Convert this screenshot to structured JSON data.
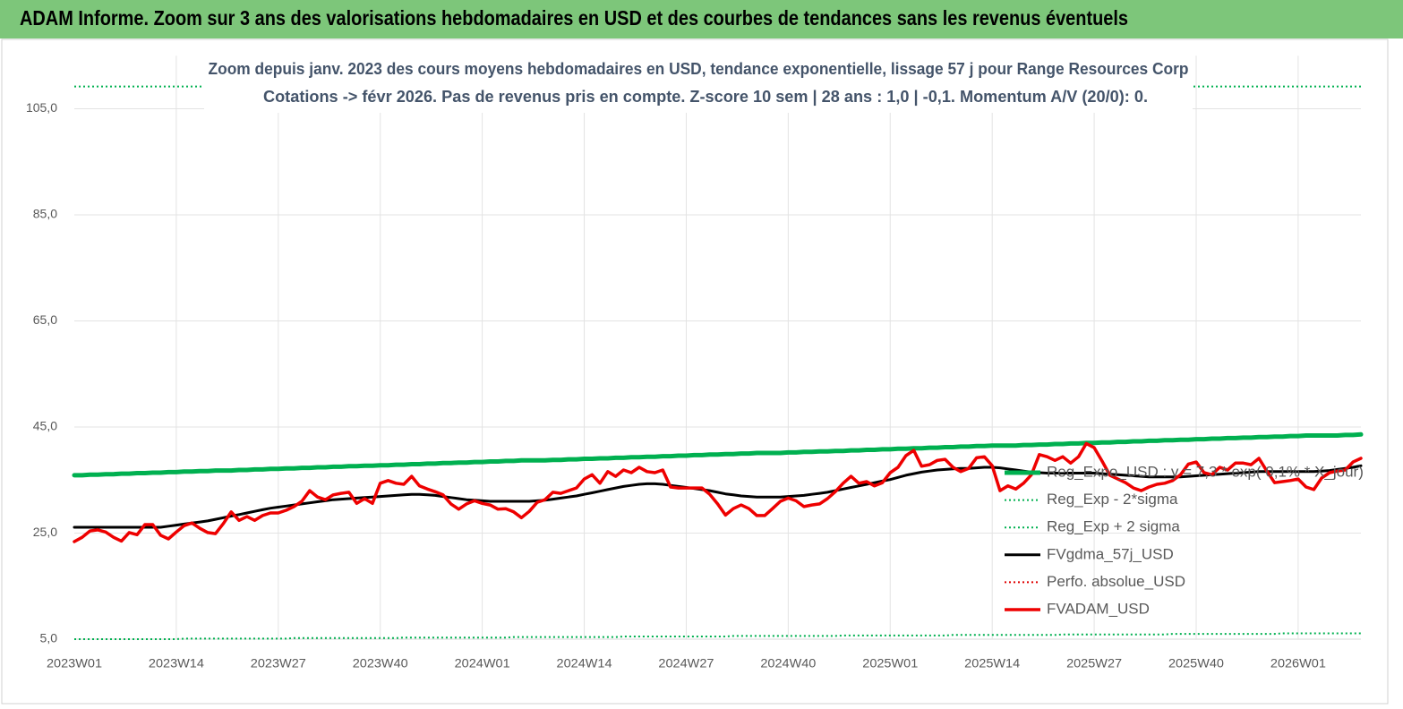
{
  "header": {
    "title": "ADAM Informe. Zoom sur 3 ans des valorisations hebdomadaires en USD et des courbes de tendances sans les revenus éventuels"
  },
  "chart_data": {
    "type": "line",
    "title": "Zoom depuis janv. 2023 des cours moyens hebdomadaires en USD, tendance exponentielle, lissage 57 j pour Range Resources Corp",
    "subtitle": "Cotations -> févr 2026. Pas de revenus pris en compte. Z-score 10 sem  | 28 ans : 1,0 | -0,1. Momentum A/V (20/0): 0.",
    "categories": [
      "2023W01",
      null,
      null,
      null,
      null,
      null,
      null,
      null,
      null,
      null,
      null,
      null,
      null,
      "2023W14",
      null,
      null,
      null,
      null,
      null,
      null,
      null,
      null,
      null,
      null,
      null,
      null,
      "2023W27",
      null,
      null,
      null,
      null,
      null,
      null,
      null,
      null,
      null,
      null,
      null,
      null,
      "2023W40",
      null,
      null,
      null,
      null,
      null,
      null,
      null,
      null,
      null,
      null,
      null,
      null,
      "2024W01",
      null,
      null,
      null,
      null,
      null,
      null,
      null,
      null,
      null,
      null,
      null,
      null,
      "2024W14",
      null,
      null,
      null,
      null,
      null,
      null,
      null,
      null,
      null,
      null,
      null,
      null,
      "2024W27",
      null,
      null,
      null,
      null,
      null,
      null,
      null,
      null,
      null,
      null,
      null,
      null,
      "2024W40",
      null,
      null,
      null,
      null,
      null,
      null,
      null,
      null,
      null,
      null,
      null,
      null,
      "2025W01",
      null,
      null,
      null,
      null,
      null,
      null,
      null,
      null,
      null,
      null,
      null,
      null,
      "2025W14",
      null,
      null,
      null,
      null,
      null,
      null,
      null,
      null,
      null,
      null,
      null,
      null,
      "2025W27",
      null,
      null,
      null,
      null,
      null,
      null,
      null,
      null,
      null,
      null,
      null,
      null,
      "2025W40",
      null,
      null,
      null,
      null,
      null,
      null,
      null,
      null,
      null,
      null,
      null,
      null,
      "2026W01",
      null,
      null,
      null,
      null,
      null,
      null,
      null,
      null
    ],
    "ylim": [
      5,
      115
    ],
    "yticks": [
      {
        "value": 5,
        "label": "5,0"
      },
      {
        "value": 25,
        "label": "25,0"
      },
      {
        "value": 45,
        "label": "45,0"
      },
      {
        "value": 65,
        "label": "65,0"
      },
      {
        "value": 85,
        "label": "85,0"
      },
      {
        "value": 105,
        "label": "105,0"
      }
    ],
    "grid": true,
    "legend": "right",
    "series": [
      {
        "name": "Reg_Expo_USD : y = 7,3 * exp( 0,1% * X_jour)",
        "color": "#00b050",
        "width": 5,
        "values": [
          35.9,
          35.9,
          36.0,
          36.0,
          36.1,
          36.1,
          36.2,
          36.2,
          36.3,
          36.3,
          36.4,
          36.4,
          36.5,
          36.5,
          36.6,
          36.6,
          36.7,
          36.7,
          36.8,
          36.8,
          36.8,
          36.9,
          36.9,
          37.0,
          37.0,
          37.1,
          37.1,
          37.2,
          37.2,
          37.3,
          37.3,
          37.4,
          37.4,
          37.5,
          37.5,
          37.6,
          37.6,
          37.7,
          37.7,
          37.8,
          37.8,
          37.9,
          37.9,
          38.0,
          38.0,
          38.1,
          38.1,
          38.2,
          38.2,
          38.3,
          38.3,
          38.4,
          38.4,
          38.5,
          38.5,
          38.6,
          38.6,
          38.7,
          38.7,
          38.7,
          38.7,
          38.8,
          38.8,
          38.9,
          38.9,
          39.0,
          39.0,
          39.1,
          39.1,
          39.2,
          39.2,
          39.3,
          39.3,
          39.4,
          39.4,
          39.5,
          39.5,
          39.6,
          39.6,
          39.7,
          39.7,
          39.8,
          39.8,
          39.9,
          39.9,
          40.0,
          40.0,
          40.1,
          40.1,
          40.1,
          40.1,
          40.2,
          40.2,
          40.3,
          40.3,
          40.4,
          40.4,
          40.5,
          40.5,
          40.6,
          40.6,
          40.7,
          40.7,
          40.8,
          40.8,
          40.9,
          40.9,
          41.0,
          41.0,
          41.1,
          41.1,
          41.2,
          41.2,
          41.3,
          41.3,
          41.4,
          41.4,
          41.5,
          41.5,
          41.5,
          41.5,
          41.6,
          41.6,
          41.7,
          41.7,
          41.8,
          41.8,
          41.9,
          41.9,
          42.0,
          42.0,
          42.1,
          42.1,
          42.2,
          42.2,
          42.3,
          42.3,
          42.4,
          42.4,
          42.5,
          42.5,
          42.6,
          42.6,
          42.7,
          42.7,
          42.8,
          42.8,
          42.9,
          42.9,
          43.0,
          43.0,
          43.1,
          43.1,
          43.2,
          43.2,
          43.3,
          43.3,
          43.4,
          43.4,
          43.4,
          43.4,
          43.4,
          43.5,
          43.5,
          43.6
        ]
      },
      {
        "name": "Reg_Exp - 2*sigma",
        "color": "#00b050",
        "width": 2,
        "dash": "dotted",
        "values": [
          5.0,
          5.0,
          5.0,
          5.0,
          5.0,
          5.0,
          5.0,
          5.0,
          5.0,
          5.0,
          5.0,
          5.0,
          5.0,
          5.0,
          5.1,
          5.1,
          5.1,
          5.1,
          5.1,
          5.1,
          5.1,
          5.1,
          5.1,
          5.1,
          5.1,
          5.1,
          5.1,
          5.1,
          5.2,
          5.2,
          5.2,
          5.2,
          5.2,
          5.2,
          5.2,
          5.2,
          5.2,
          5.2,
          5.2,
          5.2,
          5.2,
          5.2,
          5.3,
          5.3,
          5.3,
          5.3,
          5.3,
          5.3,
          5.3,
          5.3,
          5.3,
          5.3,
          5.3,
          5.3,
          5.3,
          5.3,
          5.4,
          5.4,
          5.4,
          5.4,
          5.4,
          5.4,
          5.4,
          5.4,
          5.4,
          5.4,
          5.4,
          5.4,
          5.4,
          5.4,
          5.5,
          5.5,
          5.5,
          5.5,
          5.5,
          5.5,
          5.5,
          5.5,
          5.5,
          5.5,
          5.5,
          5.5,
          5.5,
          5.5,
          5.6,
          5.6,
          5.6,
          5.6,
          5.6,
          5.6,
          5.6,
          5.6,
          5.6,
          5.6,
          5.6,
          5.6,
          5.6,
          5.6,
          5.7,
          5.7,
          5.7,
          5.7,
          5.7,
          5.7,
          5.7,
          5.7,
          5.7,
          5.7,
          5.7,
          5.7,
          5.7,
          5.7,
          5.8,
          5.8,
          5.8,
          5.8,
          5.8,
          5.8,
          5.8,
          5.8,
          5.8,
          5.8,
          5.8,
          5.8,
          5.8,
          5.8,
          5.9,
          5.9,
          5.9,
          5.9,
          5.9,
          5.9,
          5.9,
          5.9,
          5.9,
          5.9,
          5.9,
          5.9,
          5.9,
          5.9,
          6.0,
          6.0,
          6.0,
          6.0,
          6.0,
          6.0,
          6.0,
          6.0,
          6.0,
          6.0,
          6.0,
          6.0,
          6.0,
          6.0,
          6.1,
          6.1,
          6.1,
          6.1,
          6.1,
          6.1,
          6.1,
          6.1,
          6.1,
          6.1,
          6.1
        ]
      },
      {
        "name": "Reg_Exp + 2 sigma",
        "color": "#00b050",
        "width": 2,
        "dash": "dotted",
        "values": [
          109.2,
          109.2,
          109.2,
          109.2,
          109.2,
          109.2,
          109.2,
          109.2,
          109.2,
          109.2,
          109.2,
          109.2,
          109.2,
          109.2,
          109.2,
          109.2,
          109.2,
          109.2,
          109.2,
          109.2,
          109.2,
          109.2,
          109.2,
          109.2,
          109.2,
          109.2,
          109.2,
          109.2,
          109.2,
          109.2,
          109.2,
          109.2,
          109.2,
          109.2,
          109.2,
          109.2,
          109.2,
          109.2,
          109.2,
          109.2,
          109.2,
          109.2,
          109.2,
          109.2,
          109.2,
          109.2,
          109.2,
          109.2,
          109.2,
          109.2,
          109.2,
          109.2,
          109.2,
          109.2,
          109.2,
          109.2,
          109.2,
          109.2,
          109.2,
          109.2,
          109.2,
          109.2,
          109.2,
          109.2,
          109.2,
          109.2,
          109.2,
          109.2,
          109.2,
          109.2,
          109.2,
          109.2,
          109.2,
          109.2,
          109.2,
          109.2,
          109.2,
          109.2,
          109.2,
          109.2,
          109.2,
          109.2,
          109.2,
          109.2,
          109.2,
          109.2,
          109.2,
          109.2,
          109.2,
          109.2,
          109.2,
          109.2,
          109.2,
          109.2,
          109.2,
          109.2,
          109.2,
          109.2,
          109.2,
          109.2,
          109.2,
          109.2,
          109.2,
          109.2,
          109.2,
          109.2,
          109.2,
          109.2,
          109.2,
          109.2,
          109.2,
          109.2,
          109.2,
          109.2,
          109.2,
          109.2,
          109.2,
          109.2,
          109.2,
          109.2,
          109.2,
          109.2,
          109.2,
          109.2,
          109.2,
          109.2,
          109.2,
          109.2,
          109.2,
          109.2,
          109.2,
          109.2,
          109.2,
          109.2,
          109.2,
          109.2,
          109.2,
          109.2,
          109.2,
          109.2,
          109.2,
          109.2,
          109.2,
          109.2,
          109.2,
          109.2,
          109.2,
          109.2,
          109.2,
          109.2,
          109.2,
          109.2,
          109.2,
          109.2,
          109.2,
          109.2,
          109.2,
          109.2,
          109.2,
          109.2,
          109.2,
          109.2,
          109.2,
          109.2,
          109.2
        ]
      },
      {
        "name": "FVgdma_57j_USD",
        "color": "#000000",
        "width": 3,
        "values": [
          26.1,
          26.1,
          26.1,
          26.1,
          26.1,
          26.1,
          26.1,
          26.1,
          26.1,
          26.1,
          26.1,
          26.1,
          26.3,
          26.5,
          26.7,
          26.9,
          27.1,
          27.3,
          27.6,
          27.9,
          28.2,
          28.5,
          28.8,
          29.1,
          29.4,
          29.7,
          29.9,
          30.1,
          30.3,
          30.5,
          30.7,
          30.9,
          31.1,
          31.3,
          31.4,
          31.5,
          31.6,
          31.7,
          31.8,
          31.9,
          32.0,
          32.1,
          32.2,
          32.3,
          32.3,
          32.2,
          32.1,
          31.9,
          31.7,
          31.5,
          31.3,
          31.2,
          31.1,
          31.0,
          31.0,
          31.0,
          31.0,
          31.0,
          31.0,
          31.1,
          31.2,
          31.4,
          31.6,
          31.8,
          32.0,
          32.3,
          32.6,
          32.9,
          33.2,
          33.5,
          33.8,
          34.0,
          34.2,
          34.3,
          34.3,
          34.2,
          34.0,
          33.8,
          33.6,
          33.4,
          33.2,
          33.0,
          32.7,
          32.4,
          32.2,
          32.0,
          31.9,
          31.8,
          31.8,
          31.8,
          31.8,
          31.9,
          32.0,
          32.1,
          32.3,
          32.5,
          32.7,
          33.0,
          33.3,
          33.6,
          33.9,
          34.2,
          34.5,
          34.8,
          35.1,
          35.5,
          35.9,
          36.2,
          36.5,
          36.7,
          36.9,
          37.0,
          37.1,
          37.2,
          37.2,
          37.3,
          37.4,
          37.4,
          37.3,
          37.1,
          36.9,
          36.7,
          36.5,
          36.4,
          36.3,
          36.3,
          36.3,
          36.3,
          36.3,
          36.3,
          36.3,
          36.2,
          36.1,
          36.0,
          35.9,
          35.8,
          35.7,
          35.6,
          35.6,
          35.6,
          35.6,
          35.6,
          35.7,
          35.8,
          35.9,
          36.0,
          36.1,
          36.2,
          36.3,
          36.4,
          36.5,
          36.6,
          36.6,
          36.6,
          36.6,
          36.6,
          36.6,
          36.6,
          36.6,
          36.7,
          36.8,
          37.0,
          37.2,
          37.4,
          37.7
        ]
      },
      {
        "name": "Perfo. absolue_USD",
        "color": "#e00000",
        "width": 2,
        "dash": "dotted",
        "values": [
          null,
          null,
          null,
          null,
          null,
          null,
          null,
          null,
          null,
          null,
          null,
          null,
          null,
          null,
          null,
          null,
          null,
          null,
          null,
          null,
          null,
          null,
          null,
          null,
          null,
          null,
          null,
          null,
          null,
          null,
          null,
          null,
          null,
          null,
          null,
          null,
          null,
          null,
          null,
          null,
          null,
          null,
          null,
          null,
          null,
          null,
          null,
          null,
          null,
          null,
          null,
          null,
          null,
          null,
          null,
          null,
          null,
          null,
          null,
          null,
          null,
          null,
          null,
          null,
          null,
          null,
          null,
          null,
          null,
          null,
          null,
          null,
          null,
          null,
          null,
          null,
          null,
          null,
          null,
          null,
          null,
          null,
          null,
          null,
          null,
          null,
          null,
          null,
          null,
          null,
          null,
          null,
          null,
          null,
          null,
          null,
          null,
          null,
          null,
          null,
          null,
          null,
          null,
          null,
          null,
          null,
          null,
          null,
          null,
          null,
          null,
          null,
          null,
          null,
          null,
          null,
          null,
          null,
          null,
          null,
          null,
          null,
          null,
          null,
          null,
          null,
          null,
          null,
          null,
          null,
          null,
          null,
          null,
          null,
          null,
          null,
          null,
          null,
          null,
          null,
          null,
          null,
          null,
          null,
          null,
          null,
          null,
          null,
          null,
          null,
          null,
          null,
          null,
          null,
          null,
          null,
          null,
          null,
          null,
          null,
          null,
          null,
          null,
          null,
          null
        ]
      },
      {
        "name": "FVADAM_USD",
        "color": "#ee0000",
        "width": 3.5,
        "values": [
          23.4,
          24.2,
          25.4,
          25.6,
          25.2,
          24.2,
          23.5,
          25.1,
          24.7,
          26.6,
          26.6,
          24.6,
          23.9,
          25.2,
          26.4,
          26.9,
          25.9,
          25.1,
          24.9,
          26.8,
          29,
          27.4,
          28.1,
          27.4,
          28.3,
          28.8,
          28.8,
          29.3,
          30,
          31,
          33,
          31.8,
          31.3,
          32.2,
          32.5,
          32.7,
          30.6,
          31.5,
          30.6,
          34.4,
          34.9,
          34.4,
          34.2,
          35.7,
          33.9,
          33.3,
          32.8,
          32.2,
          30.5,
          29.5,
          30.5,
          31.1,
          30.6,
          30.3,
          29.5,
          29.6,
          29,
          27.9,
          29.1,
          30.8,
          31.3,
          32.7,
          32.5,
          33,
          33.5,
          35.2,
          36,
          34.4,
          36.6,
          35.7,
          36.9,
          36.4,
          37.4,
          36.6,
          36.4,
          36.9,
          33.7,
          33.5,
          33.5,
          33.5,
          33.5,
          32.3,
          30.5,
          28.4,
          29.6,
          30.3,
          29.6,
          28.3,
          28.3,
          29.6,
          31,
          31.6,
          31.1,
          30,
          30.3,
          30.5,
          31.5,
          32.8,
          34.4,
          35.7,
          34.4,
          34.7,
          33.9,
          34.5,
          36.4,
          37.4,
          39.6,
          40.6,
          37.6,
          37.9,
          38.7,
          38.9,
          37.4,
          36.6,
          37.2,
          39.2,
          39.4,
          37.7,
          33,
          33.9,
          33.3,
          34.4,
          36,
          39.8,
          39.4,
          38.7,
          39.4,
          38.2,
          39.4,
          41.9,
          41.1,
          38.6,
          35.9,
          35.2,
          34.5,
          33.5,
          33,
          33.7,
          34.2,
          34.4,
          34.9,
          36,
          38,
          38.4,
          36.4,
          36,
          37.4,
          36.9,
          38.2,
          38.2,
          37.9,
          39.1,
          36.7,
          34.5,
          34.7,
          34.9,
          35.2,
          33.7,
          33.2,
          35.4,
          36.4,
          36.7,
          36.9,
          38.4,
          39.1
        ]
      }
    ]
  }
}
